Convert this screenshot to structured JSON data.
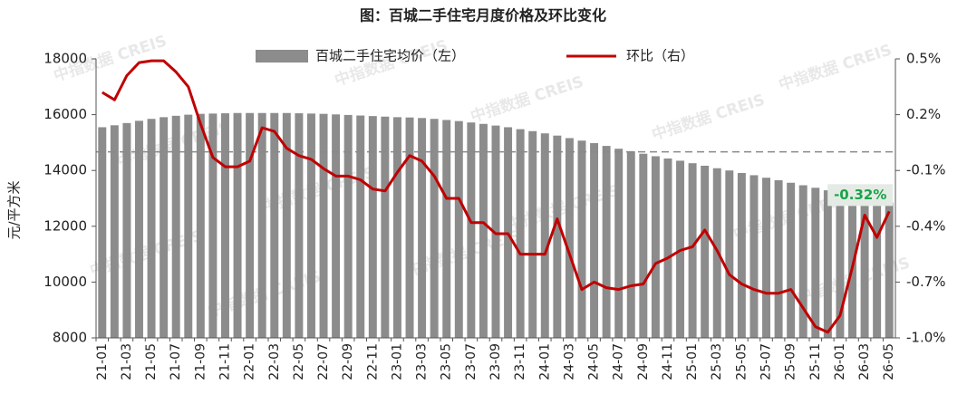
{
  "chart_data": {
    "type": "bar+line",
    "title": "图：百城二手住宅月度价格及环比变化",
    "y_label": "元/平方米",
    "watermark": "中指数据 CREIS",
    "annotation": "-0.32%",
    "categories": [
      "21-01",
      null,
      "21-03",
      null,
      "21-05",
      null,
      "21-07",
      null,
      "21-09",
      null,
      "21-11",
      null,
      "22-01",
      null,
      "22-03",
      null,
      "22-05",
      null,
      "22-07",
      null,
      "22-09",
      null,
      "22-11",
      null,
      "23-01",
      null,
      "23-03",
      null,
      "23-05",
      null,
      "23-07",
      null,
      "23-09",
      null,
      "23-11",
      null,
      "24-01",
      null,
      "24-03",
      null,
      "24-05",
      null,
      "24-07",
      null,
      "24-09",
      null,
      "24-11",
      null,
      "25-01",
      null,
      "25-03",
      null,
      "25-05",
      null,
      "25-07",
      null,
      "25-09",
      null,
      "25-11",
      null,
      "26-01",
      null,
      "26-03",
      null,
      "26-05"
    ],
    "series": [
      {
        "name": "百城二手住宅均价（左）",
        "type": "bar",
        "color": "#8c8c8c",
        "axis": "y",
        "values": [
          15550,
          15620,
          15700,
          15780,
          15850,
          15910,
          15960,
          16000,
          16030,
          16040,
          16050,
          16060,
          16060,
          16060,
          16060,
          16060,
          16050,
          16040,
          16030,
          16010,
          15990,
          15970,
          15950,
          15930,
          15910,
          15900,
          15880,
          15850,
          15810,
          15770,
          15720,
          15670,
          15610,
          15550,
          15480,
          15410,
          15330,
          15250,
          15160,
          15070,
          14980,
          14880,
          14780,
          14690,
          14600,
          14510,
          14430,
          14350,
          14260,
          14170,
          14080,
          14000,
          13910,
          13830,
          13740,
          13650,
          13560,
          13470,
          13380,
          13290,
          13190,
          13100,
          13000,
          12920,
          12850
        ]
      },
      {
        "name": "环比（右）",
        "type": "line",
        "color": "#c00000",
        "axis": "y2",
        "values": [
          0.32,
          0.28,
          0.41,
          0.48,
          0.49,
          0.49,
          0.43,
          0.35,
          0.15,
          -0.03,
          -0.08,
          -0.08,
          -0.05,
          0.13,
          0.11,
          0.02,
          -0.02,
          -0.04,
          -0.09,
          -0.13,
          -0.13,
          -0.15,
          -0.2,
          -0.21,
          -0.11,
          -0.02,
          -0.05,
          -0.13,
          -0.25,
          -0.25,
          -0.38,
          -0.38,
          -0.44,
          -0.44,
          -0.55,
          -0.55,
          -0.55,
          -0.36,
          -0.55,
          -0.74,
          -0.7,
          -0.73,
          -0.74,
          -0.72,
          -0.71,
          -0.6,
          -0.57,
          -0.53,
          -0.51,
          -0.42,
          -0.53,
          -0.66,
          -0.71,
          -0.74,
          -0.76,
          -0.76,
          -0.74,
          -0.84,
          -0.94,
          -0.97,
          -0.88,
          -0.62,
          -0.34,
          -0.46,
          -0.32
        ]
      }
    ],
    "ylim": [
      8000,
      18000
    ],
    "yticks": [
      8000,
      10000,
      12000,
      14000,
      16000,
      18000
    ],
    "y2lim": [
      -1.0,
      0.5
    ],
    "y2ticks": [
      {
        "value": -1.0,
        "label": "-1.0%"
      },
      {
        "value": -0.7,
        "label": "-0.7%"
      },
      {
        "value": -0.4,
        "label": "-0.4%"
      },
      {
        "value": -0.1,
        "label": "-0.1%"
      },
      {
        "value": 0.2,
        "label": "0.2%"
      },
      {
        "value": 0.5,
        "label": "0.5%"
      }
    ],
    "y2_reference_line": 0,
    "annotation_color": "#1aa34a",
    "legend": "top"
  }
}
